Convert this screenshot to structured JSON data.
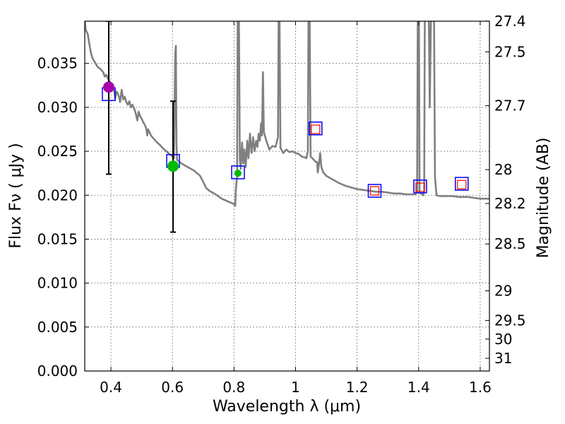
{
  "chart_data": {
    "type": "scatter",
    "title": "",
    "xlabel": "Wavelength  λ (μm)",
    "ylabel": "Flux  Fν  ( μJy )",
    "y2label": "Magnitude (AB)",
    "xlim": [
      0.315,
      1.63
    ],
    "ylim": [
      0.0,
      0.0398
    ],
    "grid": true,
    "x_ticks": [
      {
        "value": 0.4,
        "label": "0.4"
      },
      {
        "value": 0.6,
        "label": "0.6"
      },
      {
        "value": 0.8,
        "label": "0.8"
      },
      {
        "value": 1.0,
        "label": "1"
      },
      {
        "value": 1.2,
        "label": "1.2"
      },
      {
        "value": 1.4,
        "label": "1.4"
      },
      {
        "value": 1.6,
        "label": "1.6"
      }
    ],
    "y_ticks": [
      {
        "value": 0.0,
        "label": "0.000"
      },
      {
        "value": 0.005,
        "label": "0.005"
      },
      {
        "value": 0.01,
        "label": "0.010"
      },
      {
        "value": 0.015,
        "label": "0.015"
      },
      {
        "value": 0.02,
        "label": "0.020"
      },
      {
        "value": 0.025,
        "label": "0.025"
      },
      {
        "value": 0.03,
        "label": "0.030"
      },
      {
        "value": 0.035,
        "label": "0.035"
      }
    ],
    "mag_ticks": [
      {
        "value": 27.4,
        "label": "27.4"
      },
      {
        "value": 27.5,
        "label": "27.5"
      },
      {
        "value": 27.7,
        "label": "27.7"
      },
      {
        "value": 28.0,
        "label": "28"
      },
      {
        "value": 28.2,
        "label": "28.2"
      },
      {
        "value": 28.5,
        "label": "28.5"
      },
      {
        "value": 29.0,
        "label": "29"
      },
      {
        "value": 29.5,
        "label": "29.5"
      },
      {
        "value": 30.0,
        "label": "30"
      },
      {
        "value": 31.0,
        "label": "31"
      }
    ],
    "colors": {
      "model": "#808080",
      "model_box": "#0000ff",
      "observed_box": "#ff0000",
      "errorbar": "#000000",
      "point_u": "#aa00aa",
      "point_r": "#00bb00",
      "grid": "#555555"
    },
    "series": [
      {
        "name": "model-sed",
        "kind": "line",
        "points": [
          [
            0.315,
            0.04
          ],
          [
            0.318,
            0.0388
          ],
          [
            0.321,
            0.0386
          ],
          [
            0.325,
            0.0383
          ],
          [
            0.33,
            0.0372
          ],
          [
            0.335,
            0.0362
          ],
          [
            0.34,
            0.0356
          ],
          [
            0.345,
            0.0353
          ],
          [
            0.35,
            0.035
          ],
          [
            0.355,
            0.0347
          ],
          [
            0.36,
            0.0345
          ],
          [
            0.365,
            0.0344
          ],
          [
            0.37,
            0.0342
          ],
          [
            0.375,
            0.034
          ],
          [
            0.38,
            0.0335
          ],
          [
            0.385,
            0.0337
          ],
          [
            0.39,
            0.0333
          ],
          [
            0.395,
            0.033
          ],
          [
            0.4,
            0.0327
          ],
          [
            0.405,
            0.0322
          ],
          [
            0.41,
            0.032
          ],
          [
            0.414,
            0.031
          ],
          [
            0.418,
            0.0318
          ],
          [
            0.422,
            0.0316
          ],
          [
            0.426,
            0.0312
          ],
          [
            0.43,
            0.0306
          ],
          [
            0.435,
            0.032
          ],
          [
            0.44,
            0.0309
          ],
          [
            0.445,
            0.0312
          ],
          [
            0.45,
            0.0306
          ],
          [
            0.455,
            0.0303
          ],
          [
            0.46,
            0.0307
          ],
          [
            0.465,
            0.03
          ],
          [
            0.47,
            0.0303
          ],
          [
            0.475,
            0.0299
          ],
          [
            0.48,
            0.0294
          ],
          [
            0.486,
            0.0285
          ],
          [
            0.49,
            0.0295
          ],
          [
            0.495,
            0.029
          ],
          [
            0.5,
            0.0287
          ],
          [
            0.505,
            0.0283
          ],
          [
            0.51,
            0.028
          ],
          [
            0.515,
            0.0276
          ],
          [
            0.518,
            0.0268
          ],
          [
            0.521,
            0.0275
          ],
          [
            0.525,
            0.0272
          ],
          [
            0.53,
            0.0268
          ],
          [
            0.54,
            0.0264
          ],
          [
            0.55,
            0.026
          ],
          [
            0.56,
            0.0257
          ],
          [
            0.57,
            0.0253
          ],
          [
            0.58,
            0.025
          ],
          [
            0.59,
            0.0247
          ],
          [
            0.6,
            0.0244
          ],
          [
            0.605,
            0.0242
          ],
          [
            0.607,
            0.03
          ],
          [
            0.609,
            0.036
          ],
          [
            0.611,
            0.037
          ],
          [
            0.613,
            0.026
          ],
          [
            0.615,
            0.024
          ],
          [
            0.63,
            0.0236
          ],
          [
            0.65,
            0.0232
          ],
          [
            0.67,
            0.0228
          ],
          [
            0.69,
            0.0222
          ],
          [
            0.7,
            0.0215
          ],
          [
            0.71,
            0.0208
          ],
          [
            0.72,
            0.0205
          ],
          [
            0.74,
            0.0201
          ],
          [
            0.76,
            0.0196
          ],
          [
            0.78,
            0.0193
          ],
          [
            0.8,
            0.019
          ],
          [
            0.804,
            0.0188
          ],
          [
            0.806,
            0.0205
          ],
          [
            0.81,
            0.0222
          ],
          [
            0.812,
            0.04
          ],
          [
            0.816,
            0.04
          ],
          [
            0.819,
            0.024
          ],
          [
            0.822,
            0.023
          ],
          [
            0.826,
            0.026
          ],
          [
            0.83,
            0.0236
          ],
          [
            0.834,
            0.0252
          ],
          [
            0.838,
            0.0232
          ],
          [
            0.843,
            0.0262
          ],
          [
            0.847,
            0.0242
          ],
          [
            0.852,
            0.027
          ],
          [
            0.857,
            0.0248
          ],
          [
            0.862,
            0.0266
          ],
          [
            0.867,
            0.025
          ],
          [
            0.872,
            0.0262
          ],
          [
            0.876,
            0.0255
          ],
          [
            0.88,
            0.027
          ],
          [
            0.884,
            0.0262
          ],
          [
            0.888,
            0.0282
          ],
          [
            0.891,
            0.0268
          ],
          [
            0.894,
            0.034
          ],
          [
            0.897,
            0.0272
          ],
          [
            0.905,
            0.0262
          ],
          [
            0.915,
            0.0252
          ],
          [
            0.925,
            0.0256
          ],
          [
            0.935,
            0.0255
          ],
          [
            0.943,
            0.0266
          ],
          [
            0.945,
            0.04
          ],
          [
            0.948,
            0.04
          ],
          [
            0.951,
            0.0254
          ],
          [
            0.96,
            0.0248
          ],
          [
            0.97,
            0.0252
          ],
          [
            0.98,
            0.0249
          ],
          [
            0.99,
            0.025
          ],
          [
            1.0,
            0.0248
          ],
          [
            1.01,
            0.0247
          ],
          [
            1.02,
            0.0244
          ],
          [
            1.03,
            0.0243
          ],
          [
            1.035,
            0.0242
          ],
          [
            1.04,
            0.025
          ],
          [
            1.042,
            0.04
          ],
          [
            1.046,
            0.04
          ],
          [
            1.049,
            0.0244
          ],
          [
            1.055,
            0.0242
          ],
          [
            1.06,
            0.024
          ],
          [
            1.065,
            0.0238
          ],
          [
            1.07,
            0.0238
          ],
          [
            1.072,
            0.0226
          ],
          [
            1.076,
            0.0235
          ],
          [
            1.08,
            0.0248
          ],
          [
            1.084,
            0.0232
          ],
          [
            1.09,
            0.0226
          ],
          [
            1.1,
            0.0222
          ],
          [
            1.12,
            0.0218
          ],
          [
            1.14,
            0.0214
          ],
          [
            1.16,
            0.0211
          ],
          [
            1.18,
            0.0209
          ],
          [
            1.2,
            0.0207
          ],
          [
            1.22,
            0.0206
          ],
          [
            1.24,
            0.0205
          ],
          [
            1.26,
            0.0204
          ],
          [
            1.28,
            0.0204
          ],
          [
            1.3,
            0.0203
          ],
          [
            1.32,
            0.0202
          ],
          [
            1.34,
            0.0202
          ],
          [
            1.36,
            0.0201
          ],
          [
            1.38,
            0.0201
          ],
          [
            1.39,
            0.0201
          ],
          [
            1.395,
            0.0205
          ],
          [
            1.397,
            0.04
          ],
          [
            1.401,
            0.04
          ],
          [
            1.403,
            0.0203
          ],
          [
            1.415,
            0.02
          ],
          [
            1.418,
            0.0205
          ],
          [
            1.42,
            0.04
          ],
          [
            1.433,
            0.04
          ],
          [
            1.436,
            0.03
          ],
          [
            1.44,
            0.04
          ],
          [
            1.45,
            0.04
          ],
          [
            1.453,
            0.022
          ],
          [
            1.458,
            0.02
          ],
          [
            1.47,
            0.0199
          ],
          [
            1.49,
            0.0199
          ],
          [
            1.51,
            0.0199
          ],
          [
            1.53,
            0.0198
          ],
          [
            1.56,
            0.0198
          ],
          [
            1.58,
            0.0197
          ],
          [
            1.6,
            0.0196
          ],
          [
            1.63,
            0.0196
          ]
        ]
      },
      {
        "name": "model-photometry",
        "kind": "boxes",
        "points": [
          [
            0.393,
            0.0315
          ],
          [
            0.602,
            0.0239
          ],
          [
            0.813,
            0.0226
          ],
          [
            1.065,
            0.0276
          ],
          [
            1.257,
            0.0205
          ],
          [
            1.405,
            0.021
          ],
          [
            1.54,
            0.0213
          ]
        ]
      },
      {
        "name": "observed-photometry",
        "kind": "boxes",
        "points": [
          [
            1.065,
            0.0275
          ],
          [
            1.257,
            0.0205
          ],
          [
            1.405,
            0.0209
          ],
          [
            1.54,
            0.0212
          ]
        ]
      },
      {
        "name": "detections",
        "kind": "errorbar",
        "points": [
          {
            "band": "u",
            "x": 0.393,
            "y": 0.0323,
            "ylo": 0.0224,
            "yhi": 0.0398
          },
          {
            "band": "r",
            "x": 0.602,
            "y": 0.0233,
            "ylo": 0.0158,
            "yhi": 0.0307
          }
        ]
      },
      {
        "name": "faint-point",
        "kind": "point",
        "points": [
          [
            0.813,
            0.0225
          ]
        ]
      }
    ]
  }
}
